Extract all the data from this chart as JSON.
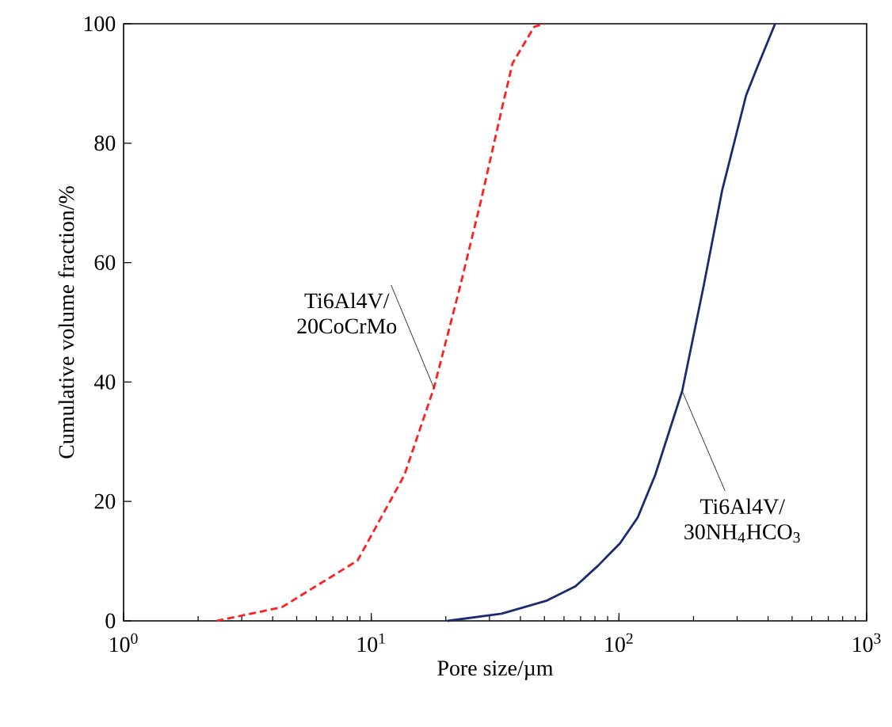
{
  "chart_data": {
    "type": "line",
    "xlabel": "Pore size/µm",
    "ylabel": "Cumulative volume fraction/%",
    "log": "x",
    "xlim": [
      1,
      1000
    ],
    "ylim": [
      0,
      100
    ],
    "xticks": [
      {
        "value": 1,
        "label": "10$^{0}$"
      },
      {
        "value": 10,
        "label": "10$^{1}$"
      },
      {
        "value": 100,
        "label": "10$^{2}$"
      },
      {
        "value": 1000,
        "label": "10$^{3}$"
      }
    ],
    "yticks": [
      0,
      20,
      40,
      60,
      80,
      100
    ],
    "grid": false,
    "marker": "none",
    "series": [
      {
        "color": "#ff1f1f",
        "line_style": "dashed",
        "x": [
          2.37,
          4.36,
          8.8,
          13.6,
          17.9,
          22.9,
          27.7,
          33.9,
          37.2,
          45.5,
          50.2
        ],
        "values": [
          0,
          2.3,
          10.1,
          24.4,
          39,
          56.2,
          70.3,
          86.3,
          93.4,
          99.5,
          100
        ]
      },
      {
        "color": "#1a2b70",
        "line_style": "solid",
        "x": [
          20.3,
          33.6,
          51.2,
          66.8,
          82.6,
          101,
          119,
          140,
          180,
          220,
          261,
          326,
          360,
          427
        ],
        "values": [
          0,
          1.2,
          3.4,
          5.8,
          9.3,
          13,
          17.3,
          24.4,
          38.5,
          56.2,
          72.1,
          88,
          92.5,
          100
        ]
      }
    ],
    "annotations": [
      {
        "text": "Ti6Al4V/ 20CoCrMo",
        "x": 17.9,
        "y": 39
      },
      {
        "text": "Ti6Al4V/ 30NH$_{4}$HCO$_{3}$",
        "x": 180,
        "y": 38.5
      }
    ]
  }
}
